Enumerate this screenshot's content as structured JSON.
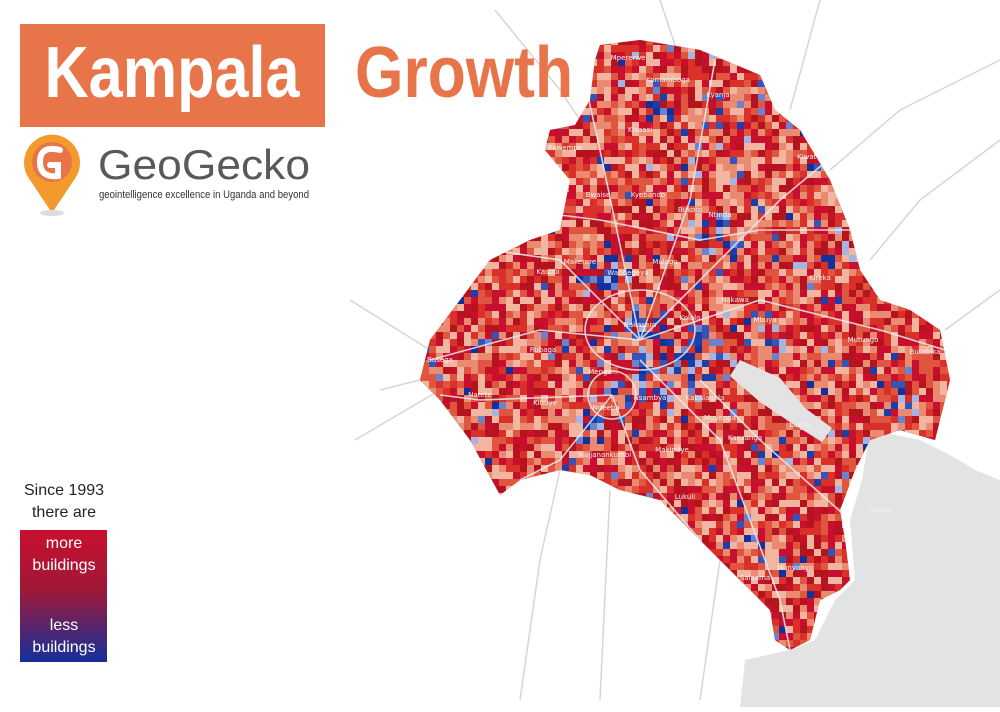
{
  "header": {
    "title_1": "Kampala",
    "title_2": "Growth"
  },
  "brand": {
    "name": "GeoGecko",
    "tagline": "geointelligence excellence in Uganda and beyond"
  },
  "legend": {
    "caption": [
      "Since 1993",
      "there are"
    ],
    "more": [
      "more",
      "buildings"
    ],
    "less": [
      "less",
      "buildings"
    ]
  },
  "places": [
    "Mpererwe",
    "Komamboga",
    "Kyanja",
    "Kawempe",
    "Kisaasi",
    "Bwaise",
    "Kyebando",
    "Ntinda",
    "Kiwatule",
    "Kasubi",
    "Makerere",
    "Wandegeya",
    "Mulago",
    "Bukoto",
    "Nakawa",
    "Kireka",
    "Nakasero",
    "Kololo",
    "Mbuya",
    "Mengo",
    "Rubaga",
    "Natete",
    "Busega",
    "Kibuye",
    "Ndeeba",
    "Nsambya",
    "Kabalagala",
    "Muyenga",
    "Luzira",
    "Mutungo",
    "Butabika",
    "Najjanankumbi",
    "Makindye",
    "Kansanga",
    "Ggaba",
    "Salaama",
    "Lukuli",
    "Munyonyo"
  ]
}
